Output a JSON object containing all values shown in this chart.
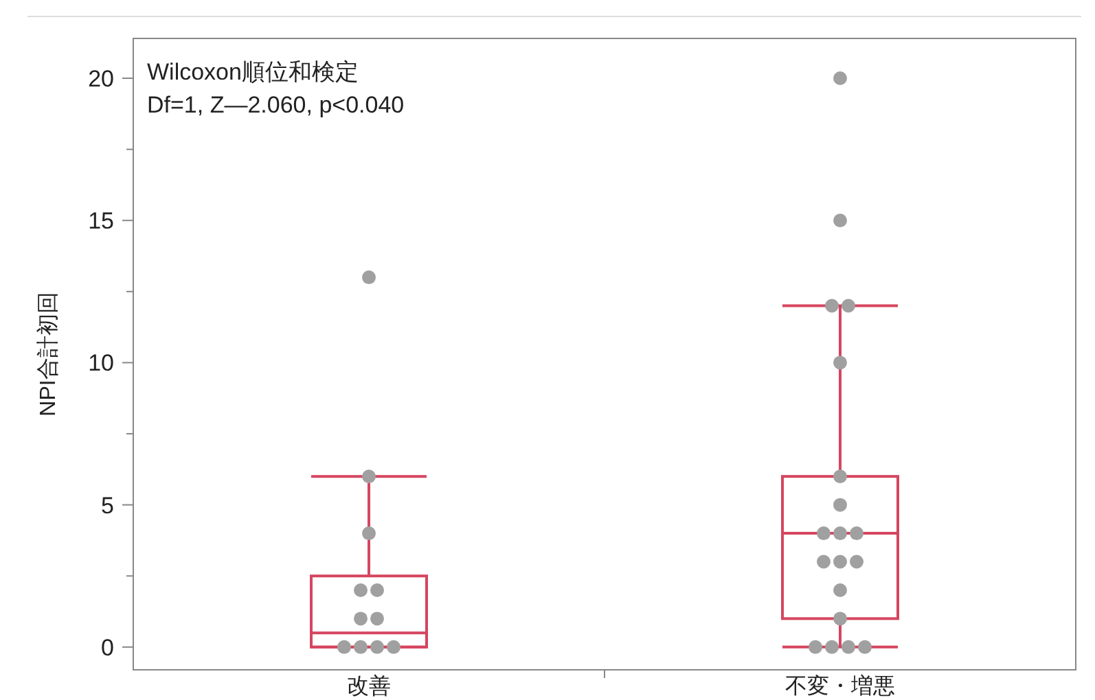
{
  "chart_data": {
    "type": "box",
    "ylabel": "NPI合計初回",
    "categories": [
      "改善",
      "不変・増悪"
    ],
    "boxes": [
      {
        "low": 0,
        "q1": 0,
        "median": 0.5,
        "q3": 2.5,
        "high": 6
      },
      {
        "low": 0,
        "q1": 1,
        "median": 4,
        "q3": 6,
        "high": 12
      }
    ],
    "color": "#d6455f",
    "series": [
      {
        "type": "scatter",
        "color": "#a0a0a0",
        "x": [
          "改善",
          "改善",
          "改善",
          "改善",
          "改善",
          "改善",
          "改善",
          "改善",
          "改善",
          "改善",
          "改善"
        ],
        "values": [
          0,
          0,
          0,
          0,
          1,
          1,
          2,
          2,
          4,
          6,
          13
        ]
      },
      {
        "type": "scatter",
        "color": "#a0a0a0",
        "x": [
          "不変・増悪",
          "不変・増悪",
          "不変・増悪",
          "不変・増悪",
          "不変・増悪",
          "不変・増悪",
          "不変・増悪",
          "不変・増悪",
          "不変・増悪",
          "不変・増悪",
          "不変・増悪",
          "不変・増悪",
          "不変・増悪",
          "不変・増悪",
          "不変・増悪",
          "不変・増悪",
          "不変・増悪",
          "不変・増悪",
          "不変・増悪"
        ],
        "values": [
          0,
          0,
          0,
          0,
          1,
          2,
          3,
          3,
          3,
          4,
          4,
          4,
          5,
          6,
          10,
          12,
          12,
          15,
          20
        ]
      }
    ],
    "ylim": [
      -0.8,
      21.4
    ],
    "yticks": [
      0,
      {
        "value": 2.5,
        "label": null
      },
      5,
      {
        "value": 7.5,
        "label": null
      },
      10,
      {
        "value": 12.5,
        "label": null
      },
      15,
      {
        "value": 17.5,
        "label": null
      },
      20
    ],
    "marker": "circle",
    "grid": false,
    "annotations": [
      "Wilcoxon順位和検定",
      "Df=1, Z—2.060, p<0.040"
    ]
  }
}
